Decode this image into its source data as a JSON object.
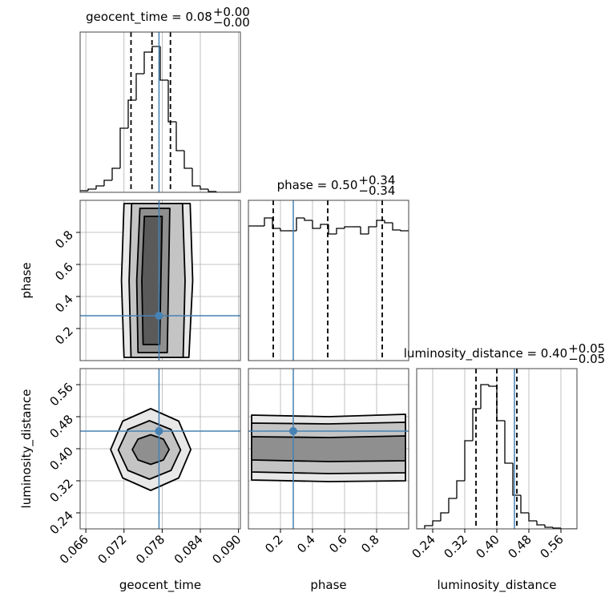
{
  "chart_data": {
    "type": "corner",
    "grid": true,
    "truth_color": "#4682b4",
    "parameters": [
      {
        "name": "geocent_time",
        "title": "geocent_time = 0.08",
        "upper": "+0.00",
        "lower": "−0.00",
        "lim": [
          0.0651,
          0.0903
        ],
        "ticks": [
          0.066,
          0.072,
          0.078,
          0.084,
          {
            "value": 0.09,
            "label": "0.090"
          }
        ],
        "truth": 0.0775,
        "quantiles": [
          0.0731,
          0.0764,
          0.0793
        ],
        "hist_lim": [
          0,
          200
        ],
        "bins": [
          0.0651,
          0.06636,
          0.06762,
          0.06888,
          0.07014,
          0.0714,
          0.07266,
          0.07392,
          0.07518,
          0.07644,
          0.0777,
          0.07896,
          0.08022,
          0.08148,
          0.08274,
          0.084,
          0.08526,
          0.08652,
          0.08778,
          0.08904,
          0.0903
        ],
        "counts": [
          2,
          4,
          8,
          15,
          30,
          80,
          115,
          148,
          175,
          182,
          140,
          88,
          52,
          30,
          8,
          4,
          1,
          0,
          0,
          0
        ]
      },
      {
        "name": "phase",
        "title": "phase = 0.50",
        "upper": "+0.34",
        "lower": "−0.34",
        "lim": [
          0,
          1
        ],
        "ticks": [
          0.2,
          0.4,
          0.6,
          0.8
        ],
        "truth": 0.28,
        "quantiles": [
          0.155,
          0.495,
          0.835
        ],
        "hist_lim": [
          0,
          200
        ],
        "bins": [
          0,
          0.05,
          0.1,
          0.15,
          0.2,
          0.25,
          0.3,
          0.35,
          0.4,
          0.45,
          0.5,
          0.55,
          0.6,
          0.65,
          0.7,
          0.75,
          0.8,
          0.85,
          0.9,
          0.95,
          1
        ],
        "counts": [
          168,
          168,
          178,
          165,
          162,
          162,
          178,
          175,
          165,
          170,
          158,
          165,
          167,
          167,
          158,
          167,
          175,
          172,
          163,
          162
        ]
      },
      {
        "name": "luminosity_distance",
        "title": "luminosity_distance = 0.40",
        "upper": "+0.05",
        "lower": "−0.05",
        "lim": [
          0.2,
          0.6
        ],
        "ticks": [
          0.24,
          0.32,
          {
            "value": 0.4,
            "label": "0.40"
          },
          0.48,
          0.56
        ],
        "truth": 0.444,
        "quantiles": [
          0.348,
          0.4,
          0.45
        ],
        "hist_lim": [
          0,
          200
        ],
        "bins": [
          0.2,
          0.22,
          0.24,
          0.26,
          0.28,
          0.3,
          0.32,
          0.34,
          0.36,
          0.38,
          0.4,
          0.42,
          0.44,
          0.46,
          0.48,
          0.5,
          0.52,
          0.54,
          0.56,
          0.58,
          0.6
        ],
        "counts": [
          0,
          4,
          10,
          20,
          38,
          60,
          110,
          150,
          180,
          178,
          135,
          82,
          42,
          20,
          10,
          5,
          2,
          1,
          0,
          0
        ]
      }
    ],
    "pairs": [
      {
        "x": 0,
        "y": 1,
        "contours": [
          [
            [
              0.072,
              0.02
            ],
            [
              0.0716,
              0.5
            ],
            [
              0.072,
              0.98
            ],
            [
              0.0824,
              0.98
            ],
            [
              0.0828,
              0.5
            ],
            [
              0.0822,
              0.02
            ]
          ],
          [
            [
              0.0731,
              0.02
            ],
            [
              0.0728,
              0.5
            ],
            [
              0.0732,
              0.98
            ],
            [
              0.0812,
              0.98
            ],
            [
              0.0816,
              0.5
            ],
            [
              0.0813,
              0.02
            ]
          ],
          [
            [
              0.0742,
              0.05
            ],
            [
              0.074,
              0.5
            ],
            [
              0.0745,
              0.95
            ],
            [
              0.0792,
              0.95
            ],
            [
              0.079,
              0.5
            ],
            [
              0.0788,
              0.05
            ]
          ],
          [
            [
              0.075,
              0.1
            ],
            [
              0.0748,
              0.5
            ],
            [
              0.0752,
              0.9
            ],
            [
              0.078,
              0.9
            ],
            [
              0.0778,
              0.5
            ],
            [
              0.0776,
              0.1
            ]
          ]
        ]
      },
      {
        "x": 0,
        "y": 2,
        "contours": [
          [
            [
              0.0825,
              0.398
            ],
            [
              0.0806,
              0.469
            ],
            [
              0.0762,
              0.5
            ],
            [
              0.0718,
              0.469
            ],
            [
              0.0699,
              0.398
            ],
            [
              0.0718,
              0.327
            ],
            [
              0.0762,
              0.296
            ],
            [
              0.0806,
              0.327
            ]
          ],
          [
            [
              0.0809,
              0.397
            ],
            [
              0.0794,
              0.448
            ],
            [
              0.076,
              0.47
            ],
            [
              0.0726,
              0.448
            ],
            [
              0.0711,
              0.397
            ],
            [
              0.0726,
              0.346
            ],
            [
              0.076,
              0.324
            ],
            [
              0.0794,
              0.346
            ]
          ],
          [
            [
              0.0791,
              0.398
            ],
            [
              0.0782,
              0.424
            ],
            [
              0.0762,
              0.435
            ],
            [
              0.0742,
              0.424
            ],
            [
              0.0733,
              0.398
            ],
            [
              0.0742,
              0.372
            ],
            [
              0.0762,
              0.361
            ],
            [
              0.0782,
              0.372
            ]
          ]
        ]
      },
      {
        "x": 1,
        "y": 2,
        "contours": [
          [
            [
              0.02,
              0.484
            ],
            [
              0.5,
              0.48
            ],
            [
              0.98,
              0.486
            ],
            [
              0.98,
              0.32
            ],
            [
              0.5,
              0.318
            ],
            [
              0.02,
              0.322
            ]
          ],
          [
            [
              0.02,
              0.464
            ],
            [
              0.5,
              0.462
            ],
            [
              0.98,
              0.466
            ],
            [
              0.98,
              0.34
            ],
            [
              0.5,
              0.338
            ],
            [
              0.02,
              0.342
            ]
          ],
          [
            [
              0.02,
              0.43
            ],
            [
              0.5,
              0.428
            ],
            [
              0.98,
              0.432
            ],
            [
              0.98,
              0.37
            ],
            [
              0.5,
              0.368
            ],
            [
              0.02,
              0.372
            ]
          ]
        ]
      }
    ]
  }
}
